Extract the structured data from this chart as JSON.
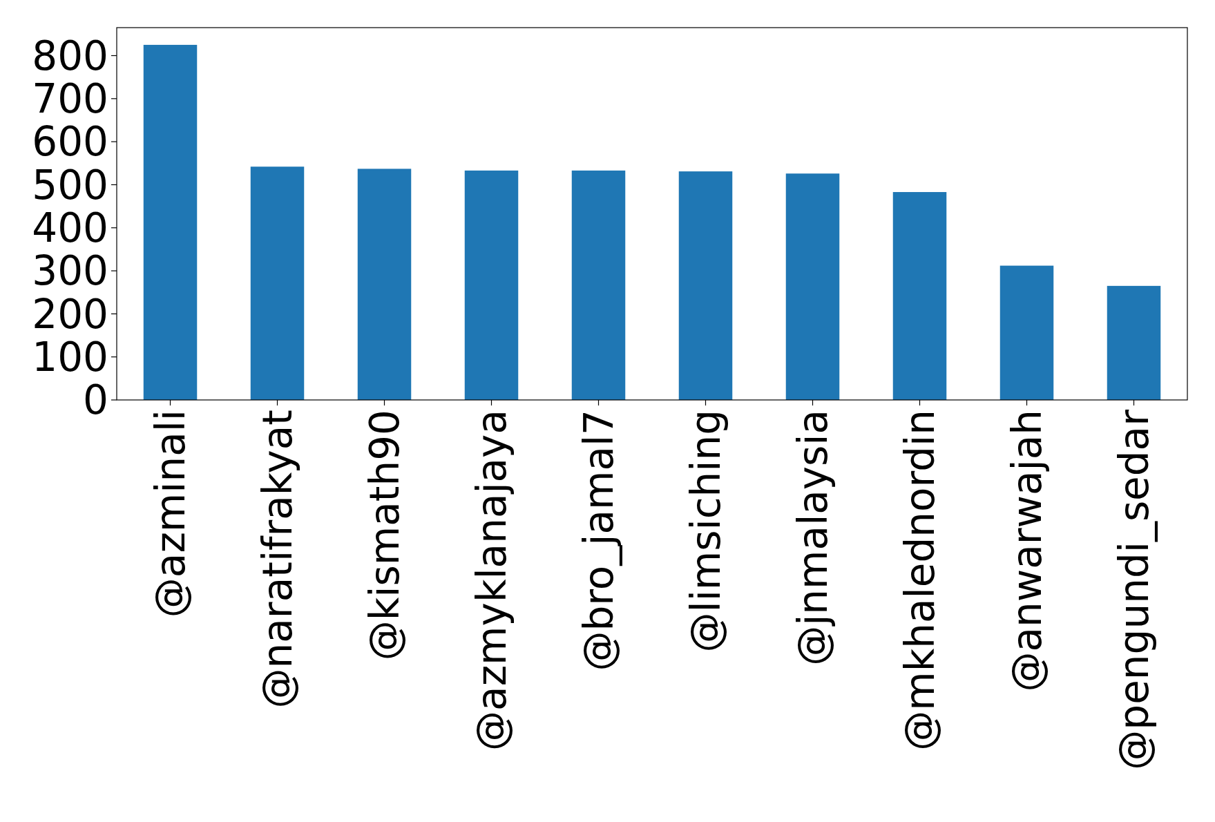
{
  "chart_data": {
    "type": "bar",
    "categories": [
      "@azminali",
      "@naratifrakyat",
      "@kismath90",
      "@azmyklanajaya",
      "@bro_jamal7",
      "@limsiching",
      "@jnmalaysia",
      "@mkhalednordin",
      "@anwarwajah",
      "@pengundi_sedar"
    ],
    "values": [
      825,
      542,
      537,
      533,
      533,
      531,
      526,
      483,
      312,
      265
    ],
    "color": "#1f77b4",
    "ylim": [
      0,
      865
    ],
    "yticks": [
      0,
      100,
      200,
      300,
      400,
      500,
      600,
      700,
      800
    ],
    "grid": false
  }
}
